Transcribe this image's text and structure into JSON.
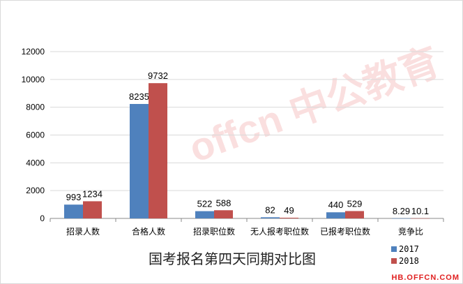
{
  "chart_data": {
    "type": "bar",
    "title": "国考报名第四天同期对比图",
    "categories": [
      "招录人数",
      "合格人数",
      "招录职位数",
      "无人报考职位数",
      "已报考职位数",
      "竞争比"
    ],
    "series": [
      {
        "name": "2017",
        "color": "#4f81bd",
        "values": [
          993,
          8235,
          522,
          82,
          440,
          8.29
        ],
        "labels": [
          "993",
          "8235",
          "522",
          "82",
          "440",
          "8.29"
        ]
      },
      {
        "name": "2018",
        "color": "#c0504d",
        "values": [
          1234,
          9732,
          588,
          49,
          529,
          10.1
        ],
        "labels": [
          "1234",
          "9732",
          "588",
          "49",
          "529",
          "10.1"
        ]
      }
    ],
    "ylim": [
      0,
      12000
    ],
    "yticks": [
      0,
      2000,
      4000,
      6000,
      8000,
      10000,
      12000
    ],
    "grid": true,
    "legend": "bottom-right"
  },
  "watermark": "offcn中公教育",
  "site": "HB.OFFCN.COM"
}
